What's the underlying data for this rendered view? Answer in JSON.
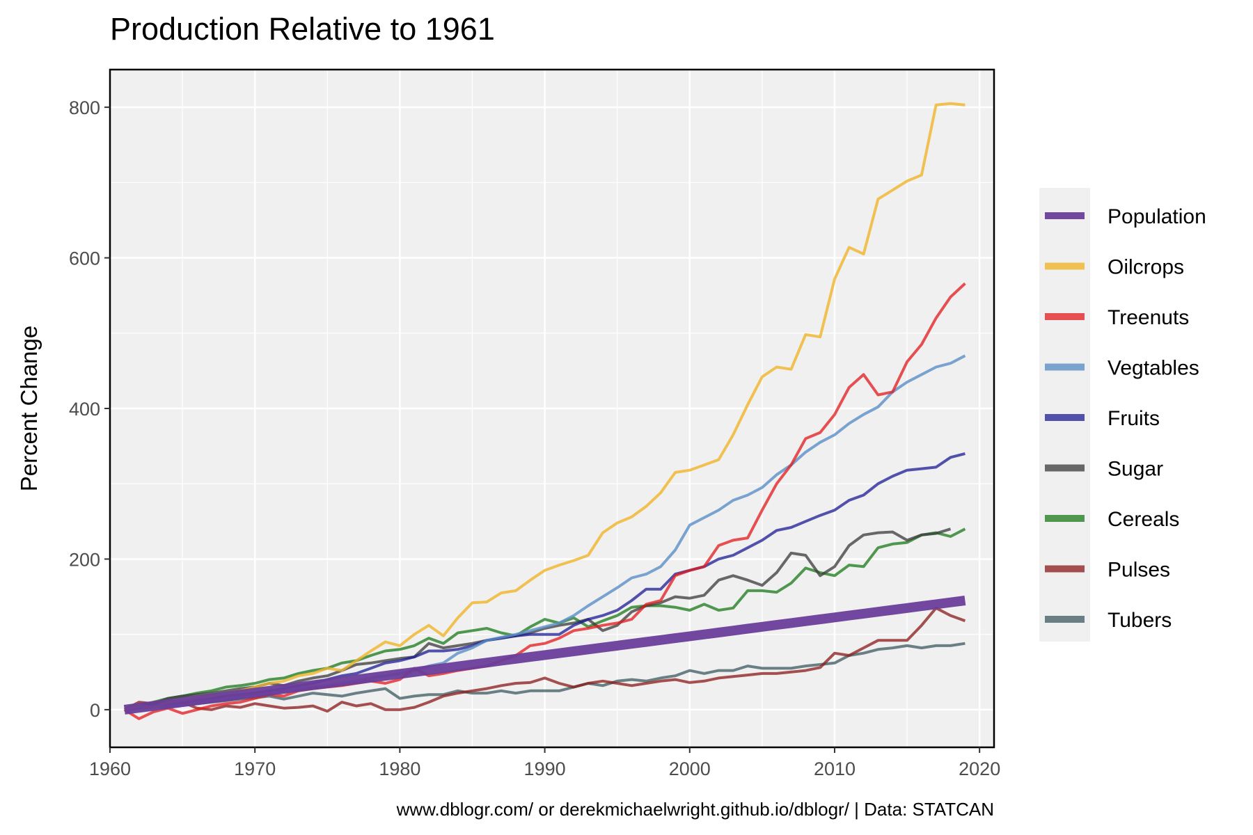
{
  "chart_data": {
    "type": "line",
    "title": "Production Relative to 1961",
    "xlabel": "",
    "ylabel": "Percent Change",
    "caption": "www.dblogr.com/ or derekmichaelwright.github.io/dblogr/ | Data: STATCAN",
    "xlim": [
      1960,
      2021
    ],
    "ylim": [
      -50,
      850
    ],
    "x_ticks": [
      1960,
      1970,
      1980,
      1990,
      2000,
      2010,
      2020
    ],
    "y_ticks": [
      0,
      200,
      400,
      600,
      800
    ],
    "grid": true,
    "legend_position": "right",
    "x": [
      1961,
      1962,
      1963,
      1964,
      1965,
      1966,
      1967,
      1968,
      1969,
      1970,
      1971,
      1972,
      1973,
      1974,
      1975,
      1976,
      1977,
      1978,
      1979,
      1980,
      1981,
      1982,
      1983,
      1984,
      1985,
      1986,
      1987,
      1988,
      1989,
      1990,
      1991,
      1992,
      1993,
      1994,
      1995,
      1996,
      1997,
      1998,
      1999,
      2000,
      2001,
      2002,
      2003,
      2004,
      2005,
      2006,
      2007,
      2008,
      2009,
      2010,
      2011,
      2012,
      2013,
      2014,
      2015,
      2016,
      2017,
      2018,
      2019
    ],
    "series": [
      {
        "name": "Population",
        "color": "#6a3d9a",
        "width": 14,
        "opacity": 0.95,
        "values": [
          0,
          2.5,
          5,
          7.5,
          10,
          12.5,
          15,
          17.5,
          20,
          22.5,
          25,
          27.5,
          30,
          32.5,
          35,
          37.5,
          40,
          42.5,
          45,
          47.5,
          50,
          52.5,
          55,
          57.5,
          60,
          62.5,
          65,
          67.5,
          70,
          72.5,
          75,
          77.5,
          80,
          82.5,
          85,
          87.5,
          90,
          92.5,
          95,
          97.5,
          100,
          102.5,
          105,
          107.5,
          110,
          112.5,
          115,
          117.5,
          120,
          122.5,
          125,
          127.5,
          130,
          132.5,
          135,
          137.5,
          140,
          142.5,
          145
        ]
      },
      {
        "name": "Oilcrops",
        "color": "#f0b429",
        "width": 4,
        "opacity": 0.8,
        "values": [
          0,
          5,
          3,
          10,
          12,
          15,
          18,
          22,
          25,
          30,
          35,
          38,
          45,
          48,
          55,
          52,
          65,
          78,
          90,
          85,
          100,
          112,
          98,
          122,
          142,
          143,
          155,
          158,
          172,
          185,
          192,
          198,
          205,
          235,
          248,
          256,
          270,
          288,
          315,
          318,
          325,
          332,
          365,
          405,
          442,
          455,
          452,
          498,
          495,
          572,
          614,
          605,
          678,
          690,
          702,
          710,
          803,
          805,
          803
        ]
      },
      {
        "name": "Treenuts",
        "color": "#e31a1c",
        "width": 4,
        "opacity": 0.75,
        "values": [
          0,
          -12,
          -3,
          2,
          -5,
          0,
          5,
          8,
          10,
          15,
          20,
          18,
          25,
          28,
          30,
          32,
          35,
          38,
          35,
          40,
          55,
          45,
          48,
          52,
          55,
          58,
          65,
          72,
          85,
          88,
          95,
          105,
          108,
          112,
          115,
          120,
          140,
          145,
          178,
          185,
          190,
          218,
          225,
          228,
          265,
          300,
          325,
          360,
          368,
          392,
          428,
          445,
          418,
          422,
          462,
          485,
          520,
          548,
          566
        ]
      },
      {
        "name": "Vegtables",
        "color": "#5b8fc7",
        "width": 4,
        "opacity": 0.8,
        "values": [
          0,
          2,
          3,
          5,
          6,
          10,
          12,
          15,
          18,
          20,
          22,
          24,
          28,
          30,
          32,
          35,
          38,
          42,
          45,
          48,
          52,
          58,
          62,
          75,
          82,
          92,
          96,
          100,
          105,
          110,
          115,
          125,
          138,
          150,
          162,
          175,
          180,
          190,
          212,
          245,
          255,
          265,
          278,
          285,
          295,
          312,
          325,
          342,
          355,
          365,
          380,
          392,
          402,
          422,
          435,
          445,
          455,
          460,
          470
        ]
      },
      {
        "name": "Fruits",
        "color": "#1c1c94",
        "width": 4,
        "opacity": 0.75,
        "values": [
          0,
          3,
          5,
          8,
          10,
          12,
          15,
          18,
          20,
          22,
          25,
          28,
          32,
          35,
          40,
          45,
          48,
          55,
          62,
          65,
          70,
          78,
          78,
          80,
          85,
          92,
          95,
          98,
          100,
          100,
          100,
          112,
          120,
          125,
          132,
          145,
          160,
          160,
          180,
          185,
          190,
          200,
          205,
          215,
          225,
          238,
          242,
          250,
          258,
          265,
          278,
          285,
          300,
          310,
          318,
          320,
          322,
          335,
          340
        ]
      },
      {
        "name": "Sugar",
        "color": "#3a3a3a",
        "width": 4,
        "opacity": 0.75,
        "values": [
          0,
          5,
          8,
          15,
          18,
          20,
          22,
          25,
          28,
          30,
          35,
          32,
          38,
          42,
          45,
          52,
          60,
          62,
          65,
          68,
          70,
          88,
          82,
          85,
          88,
          92,
          95,
          98,
          102,
          108,
          112,
          115,
          120,
          105,
          112,
          130,
          138,
          142,
          150,
          148,
          152,
          172,
          178,
          172,
          165,
          182,
          208,
          205,
          178,
          190,
          218,
          232,
          235,
          236,
          225,
          232,
          234,
          240,
          null
        ]
      },
      {
        "name": "Cereals",
        "color": "#1a7a1a",
        "width": 4,
        "opacity": 0.75,
        "values": [
          0,
          5,
          10,
          15,
          18,
          22,
          25,
          30,
          32,
          35,
          40,
          42,
          48,
          52,
          55,
          62,
          65,
          72,
          78,
          80,
          85,
          95,
          88,
          102,
          105,
          108,
          102,
          98,
          110,
          120,
          115,
          122,
          110,
          118,
          125,
          136,
          138,
          138,
          136,
          132,
          140,
          132,
          135,
          158,
          158,
          156,
          168,
          188,
          182,
          178,
          192,
          190,
          215,
          220,
          222,
          232,
          235,
          230,
          240
        ]
      },
      {
        "name": "Pulses",
        "color": "#8b1a1a",
        "width": 4,
        "opacity": 0.75,
        "values": [
          0,
          10,
          8,
          12,
          10,
          2,
          0,
          5,
          3,
          8,
          5,
          2,
          3,
          5,
          -2,
          10,
          5,
          8,
          0,
          0,
          3,
          10,
          18,
          22,
          25,
          28,
          32,
          35,
          36,
          42,
          35,
          30,
          35,
          38,
          35,
          32,
          35,
          38,
          40,
          36,
          38,
          42,
          44,
          46,
          48,
          48,
          50,
          52,
          56,
          75,
          72,
          82,
          92,
          92,
          92,
          112,
          135,
          125,
          118
        ]
      },
      {
        "name": "Tubers",
        "color": "#3c5a5f",
        "width": 4,
        "opacity": 0.75,
        "values": [
          0,
          2,
          4,
          5,
          6,
          8,
          10,
          12,
          14,
          16,
          18,
          14,
          18,
          22,
          20,
          18,
          22,
          25,
          28,
          15,
          18,
          20,
          20,
          25,
          22,
          22,
          25,
          22,
          25,
          25,
          25,
          30,
          35,
          32,
          38,
          40,
          38,
          42,
          45,
          52,
          48,
          52,
          52,
          58,
          55,
          55,
          55,
          58,
          60,
          62,
          72,
          75,
          80,
          82,
          85,
          82,
          85,
          85,
          88
        ]
      }
    ]
  }
}
